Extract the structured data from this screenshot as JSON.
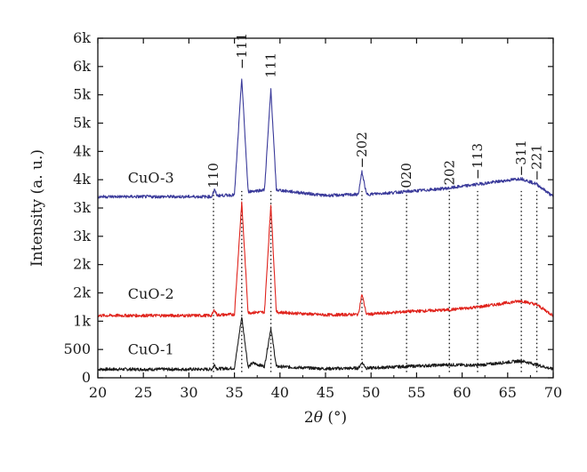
{
  "chart_data": {
    "type": "line",
    "title": "",
    "xlabel": "2θ (°)",
    "xlabel_parts": {
      "prefix": "2",
      "italic": "θ",
      "suffix": " (°)"
    },
    "ylabel": "Intensity (a. u.)",
    "xlim": [
      20,
      70
    ],
    "ylim": [
      0,
      6000
    ],
    "x_ticks": [
      20,
      25,
      30,
      35,
      40,
      45,
      50,
      55,
      60,
      65,
      70
    ],
    "x_tick_labels": [
      "20",
      "25",
      "30",
      "35",
      "40",
      "45",
      "50",
      "55",
      "60",
      "65",
      "70"
    ],
    "y_ticks": [
      0,
      500,
      1000,
      1500,
      2000,
      2500,
      3000,
      3500,
      4000,
      4500,
      5000,
      5500,
      6000
    ],
    "y_tick_labels": [
      "0",
      "500",
      "1k",
      "2k",
      "2k",
      "3k",
      "3k",
      "4k",
      "4k",
      "5k",
      "5k",
      "6k",
      "6k"
    ],
    "grid": false,
    "legend": "none",
    "series": [
      {
        "name": "CuO-1",
        "color": "#1a1a1a",
        "baseline": 150,
        "points": [
          [
            20,
            150
          ],
          [
            32.5,
            150
          ],
          [
            32.8,
            230
          ],
          [
            33.1,
            160
          ],
          [
            35,
            170
          ],
          [
            35.8,
            1080
          ],
          [
            36.5,
            190
          ],
          [
            37,
            260
          ],
          [
            38.3,
            200
          ],
          [
            39,
            880
          ],
          [
            39.6,
            200
          ],
          [
            45,
            160
          ],
          [
            48.6,
            170
          ],
          [
            49,
            270
          ],
          [
            49.5,
            170
          ],
          [
            53.9,
            200
          ],
          [
            58.5,
            230
          ],
          [
            61.7,
            220
          ],
          [
            66.5,
            300
          ],
          [
            68.2,
            230
          ],
          [
            70,
            150
          ]
        ]
      },
      {
        "name": "CuO-2",
        "color": "#e0231c",
        "baseline": 1100,
        "points": [
          [
            20,
            1100
          ],
          [
            32.5,
            1100
          ],
          [
            32.8,
            1200
          ],
          [
            33.1,
            1110
          ],
          [
            35,
            1120
          ],
          [
            35.8,
            3100
          ],
          [
            36.5,
            1150
          ],
          [
            38.3,
            1160
          ],
          [
            39,
            3070
          ],
          [
            39.6,
            1160
          ],
          [
            45,
            1110
          ],
          [
            48.6,
            1120
          ],
          [
            49,
            1480
          ],
          [
            49.5,
            1120
          ],
          [
            53.9,
            1170
          ],
          [
            58.5,
            1200
          ],
          [
            61.7,
            1250
          ],
          [
            66.5,
            1360
          ],
          [
            68.2,
            1290
          ],
          [
            70,
            1100
          ]
        ]
      },
      {
        "name": "CuO-3",
        "color": "#3a3a9a",
        "baseline": 3200,
        "points": [
          [
            20,
            3200
          ],
          [
            32.5,
            3200
          ],
          [
            32.8,
            3320
          ],
          [
            33.1,
            3220
          ],
          [
            35,
            3230
          ],
          [
            35.8,
            5300
          ],
          [
            36.5,
            3290
          ],
          [
            38.3,
            3320
          ],
          [
            39,
            5100
          ],
          [
            39.6,
            3320
          ],
          [
            45,
            3220
          ],
          [
            48.6,
            3240
          ],
          [
            49,
            3640
          ],
          [
            49.5,
            3240
          ],
          [
            53.9,
            3290
          ],
          [
            58.5,
            3350
          ],
          [
            61.7,
            3420
          ],
          [
            66.5,
            3520
          ],
          [
            68.2,
            3420
          ],
          [
            70,
            3200
          ]
        ]
      }
    ],
    "sample_labels": [
      {
        "text": "CuO-3",
        "x": 23.3,
        "y": 3450
      },
      {
        "text": "CuO-2",
        "x": 23.3,
        "y": 1400
      },
      {
        "text": "CuO-1",
        "x": 23.3,
        "y": 420
      }
    ],
    "peak_labels": [
      {
        "text": "110",
        "x": 32.7,
        "y": 3350
      },
      {
        "text": "−111",
        "x": 35.8,
        "y": 5450
      },
      {
        "text": "111",
        "x": 39.0,
        "y": 5300
      },
      {
        "text": "−202",
        "x": 49.0,
        "y": 3700
      },
      {
        "text": "020",
        "x": 53.9,
        "y": 3350
      },
      {
        "text": "202",
        "x": 58.6,
        "y": 3400
      },
      {
        "text": "−113",
        "x": 61.7,
        "y": 3500
      },
      {
        "text": "−311",
        "x": 66.5,
        "y": 3560
      },
      {
        "text": "−221",
        "x": 68.2,
        "y": 3480
      }
    ],
    "reference_lines": [
      32.7,
      35.8,
      39.0,
      49.0,
      53.9,
      58.6,
      61.7,
      66.5,
      68.2
    ]
  }
}
